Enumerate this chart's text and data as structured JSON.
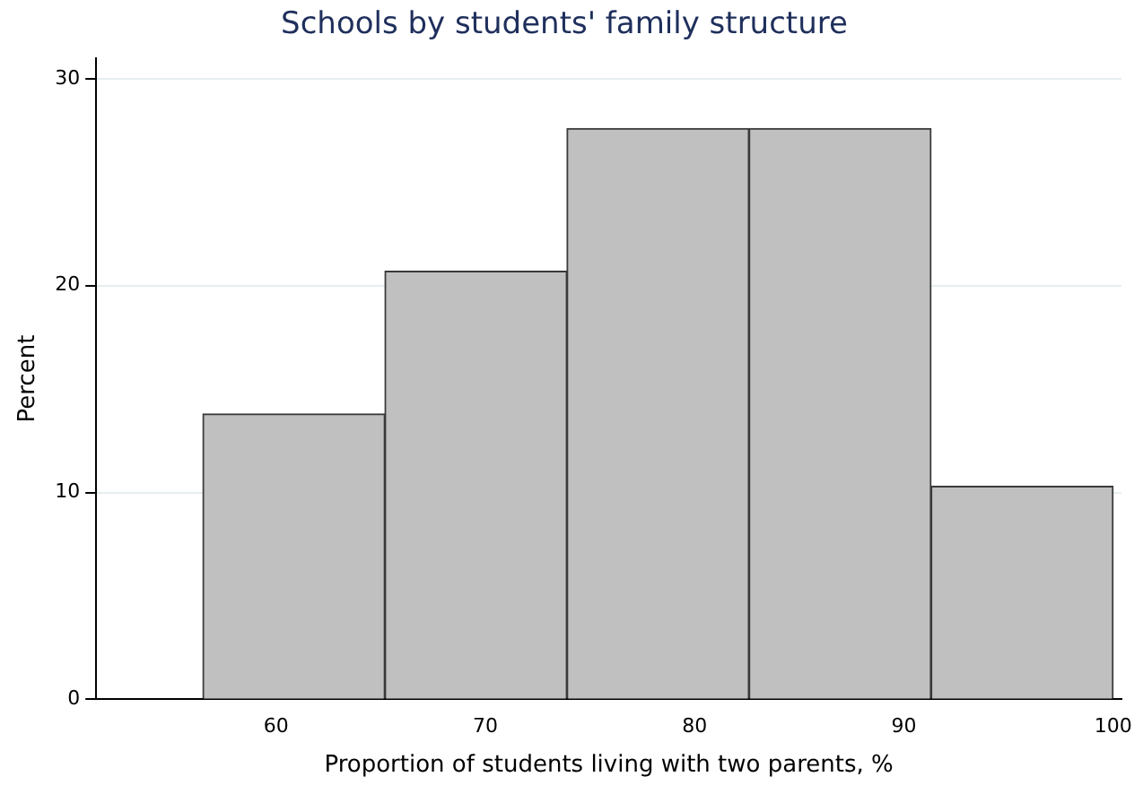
{
  "chart_data": {
    "type": "histogram",
    "title": "Schools by students' family structure",
    "xlabel": "Proportion of students living with two parents, %",
    "ylabel": "Percent",
    "bins": [
      56.5,
      65.2,
      73.9,
      82.6,
      91.3,
      100
    ],
    "values": [
      13.8,
      20.7,
      27.6,
      27.6,
      10.3
    ],
    "color": "#c0c0c0",
    "xlim": [
      51.4,
      100.4
    ],
    "xticks": [
      60,
      70,
      80,
      90,
      100
    ],
    "ylim": [
      0,
      31
    ],
    "yticks": [
      0,
      10,
      20,
      30
    ],
    "grid": "y",
    "legend": false
  }
}
